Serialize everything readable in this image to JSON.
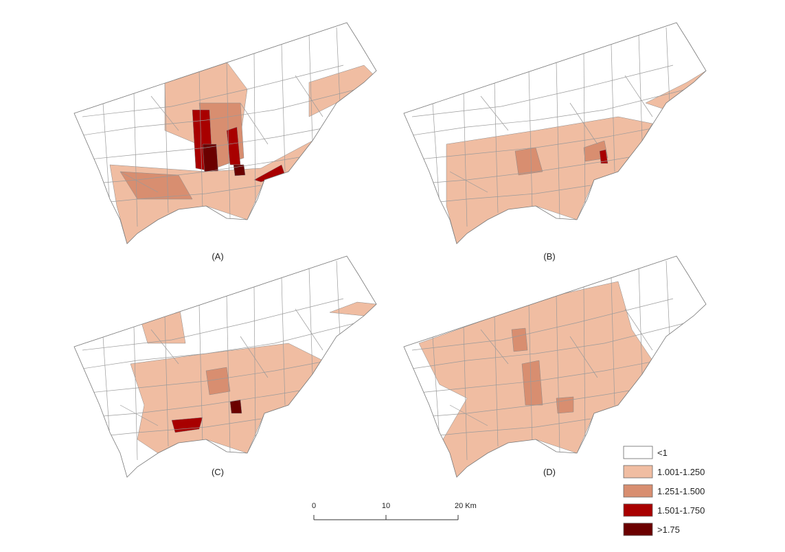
{
  "panels": [
    {
      "label": "(A)"
    },
    {
      "label": "(B)"
    },
    {
      "label": "(C)"
    },
    {
      "label": "(D)"
    }
  ],
  "legend": [
    {
      "label": "<1",
      "color": "#ffffff"
    },
    {
      "label": "1.001-1.250",
      "color": "#f0bda2"
    },
    {
      "label": "1.251-1.500",
      "color": "#d88e70"
    },
    {
      "label": "1.501-1.750",
      "color": "#a80000"
    },
    {
      "label": ">1.75",
      "color": "#6b0000"
    }
  ],
  "scale_bar": {
    "ticks": [
      "0",
      "10",
      "20 Km"
    ]
  }
}
